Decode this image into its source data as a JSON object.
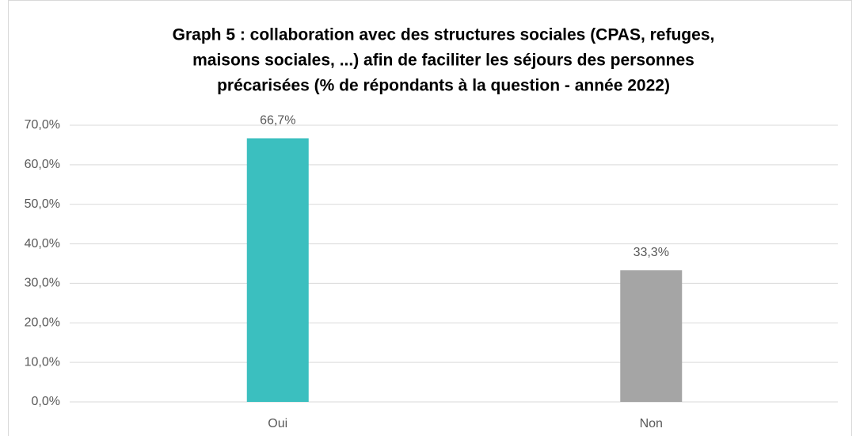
{
  "chart_data": {
    "type": "bar",
    "title": [
      "Graph 5 : collaboration avec des structures sociales (CPAS, refuges,",
      "maisons sociales, ...) afin de faciliter les séjours des personnes",
      "précarisées (% de répondants à la question - année 2022)"
    ],
    "categories": [
      "Oui",
      "Non"
    ],
    "values": [
      66.7,
      33.3
    ],
    "value_labels": [
      "66,7%",
      "33,3%"
    ],
    "colors": [
      "#3bbfbf",
      "#a5a5a5"
    ],
    "ylim": [
      0,
      70
    ],
    "yticks": [
      {
        "value": 0,
        "label": "0,0%"
      },
      {
        "value": 10,
        "label": "10,0%"
      },
      {
        "value": 20,
        "label": "20,0%"
      },
      {
        "value": 30,
        "label": "30,0%"
      },
      {
        "value": 40,
        "label": "40,0%"
      },
      {
        "value": 50,
        "label": "50,0%"
      },
      {
        "value": 60,
        "label": "60,0%"
      },
      {
        "value": 70,
        "label": "70,0%"
      }
    ],
    "grid": true
  }
}
